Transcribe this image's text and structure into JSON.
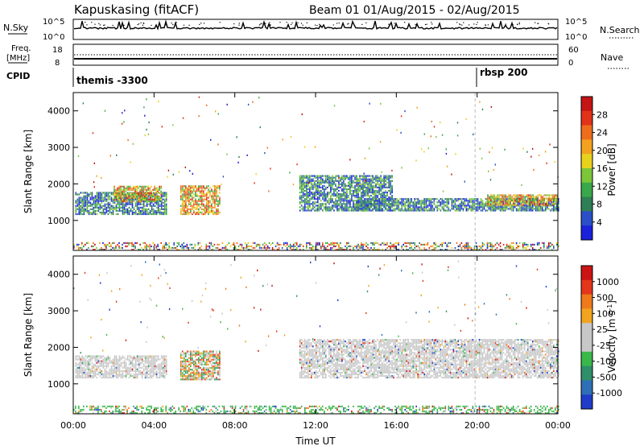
{
  "header": {
    "station": "Kapuskasing (fitACF)",
    "beam_info": "Beam 01  01/Aug/2015 - 02/Aug/2015"
  },
  "top_panels": {
    "nsky_label": "N.Sky",
    "nsky_ticks": [
      "10^5",
      "10^0"
    ],
    "nsearch_label": "N.Search",
    "nsearch_ticks": [
      "10^5",
      "10^0"
    ],
    "freq_label": "Freq.",
    "freq_unit": "[MHz]",
    "freq_ticks": [
      "18",
      "8"
    ],
    "nave_label": "Nave",
    "nave_ticks": [
      "60",
      "0"
    ],
    "cpid_label": "CPID",
    "cpid_entries": [
      {
        "name": "themis -3300",
        "start_hour": 0
      },
      {
        "name": "rbsp 200",
        "start_hour": 19.9
      }
    ]
  },
  "chart_data": [
    {
      "type": "heatmap",
      "panel": "power",
      "ylabel": "Slant Range [km]",
      "ylim": [
        180,
        4500
      ],
      "yticks": [
        1000,
        2000,
        3000,
        4000
      ],
      "xlim": [
        0,
        24
      ],
      "colorbar": {
        "label": "Power [dB]",
        "ticks": [
          "4",
          "8",
          "12",
          "16",
          "20",
          "24",
          "28"
        ],
        "colors": [
          "#1a22dc",
          "#2a4fc8",
          "#2e7f55",
          "#3aa84a",
          "#7cc63a",
          "#e8d21e",
          "#f3a21f",
          "#ee6d1c",
          "#e2321a",
          "#c41414"
        ]
      },
      "echo_regions": [
        {
          "t0": 0.1,
          "t1": 4.6,
          "r0": 1150,
          "r1": 1750,
          "level": "mid"
        },
        {
          "t0": 2.0,
          "t1": 4.4,
          "r0": 1500,
          "r1": 1950,
          "level": "high"
        },
        {
          "t0": 5.3,
          "t1": 7.3,
          "r0": 1150,
          "r1": 1950,
          "level": "high"
        },
        {
          "t0": 11.2,
          "t1": 15.8,
          "r0": 1250,
          "r1": 2200,
          "level": "mid"
        },
        {
          "t0": 14.0,
          "t1": 24.0,
          "r0": 1250,
          "r1": 1600,
          "level": "mid"
        },
        {
          "t0": 20.5,
          "t1": 24.0,
          "r0": 1400,
          "r1": 1700,
          "level": "high"
        },
        {
          "t0": 0.0,
          "t1": 24.0,
          "r0": 180,
          "r1": 400,
          "level": "ground"
        }
      ]
    },
    {
      "type": "heatmap",
      "panel": "velocity",
      "ylabel": "Slant Range [km]",
      "ylim": [
        180,
        4500
      ],
      "yticks": [
        1000,
        2000,
        3000,
        4000
      ],
      "xlim": [
        0,
        24
      ],
      "xticks": [
        "00:00",
        "04:00",
        "08:00",
        "12:00",
        "16:00",
        "20:00",
        "00:00"
      ],
      "xlabel": "Time UT",
      "colorbar": {
        "label": "Velocity [m s^-1]",
        "ticks": [
          "1000",
          "500",
          "100",
          "25",
          "-25",
          "-100",
          "-500",
          "-1000"
        ],
        "colors": [
          "#1f3cc8",
          "#2f6fb8",
          "#2e8f6a",
          "#3ab84a",
          "#c8c8c8",
          "#c8c8c8",
          "#f2a41f",
          "#ee7a1a",
          "#e3361a",
          "#cc1414"
        ]
      },
      "echo_regions": [
        {
          "t0": 0.1,
          "t1": 4.6,
          "r0": 1150,
          "r1": 1750,
          "level": "gray"
        },
        {
          "t0": 5.3,
          "t1": 7.3,
          "r0": 1100,
          "r1": 1900,
          "level": "mixed"
        },
        {
          "t0": 11.2,
          "t1": 24.0,
          "r0": 1150,
          "r1": 2200,
          "level": "gray"
        },
        {
          "t0": 0.0,
          "t1": 24.0,
          "r0": 180,
          "r1": 400,
          "level": "ground"
        }
      ]
    }
  ]
}
